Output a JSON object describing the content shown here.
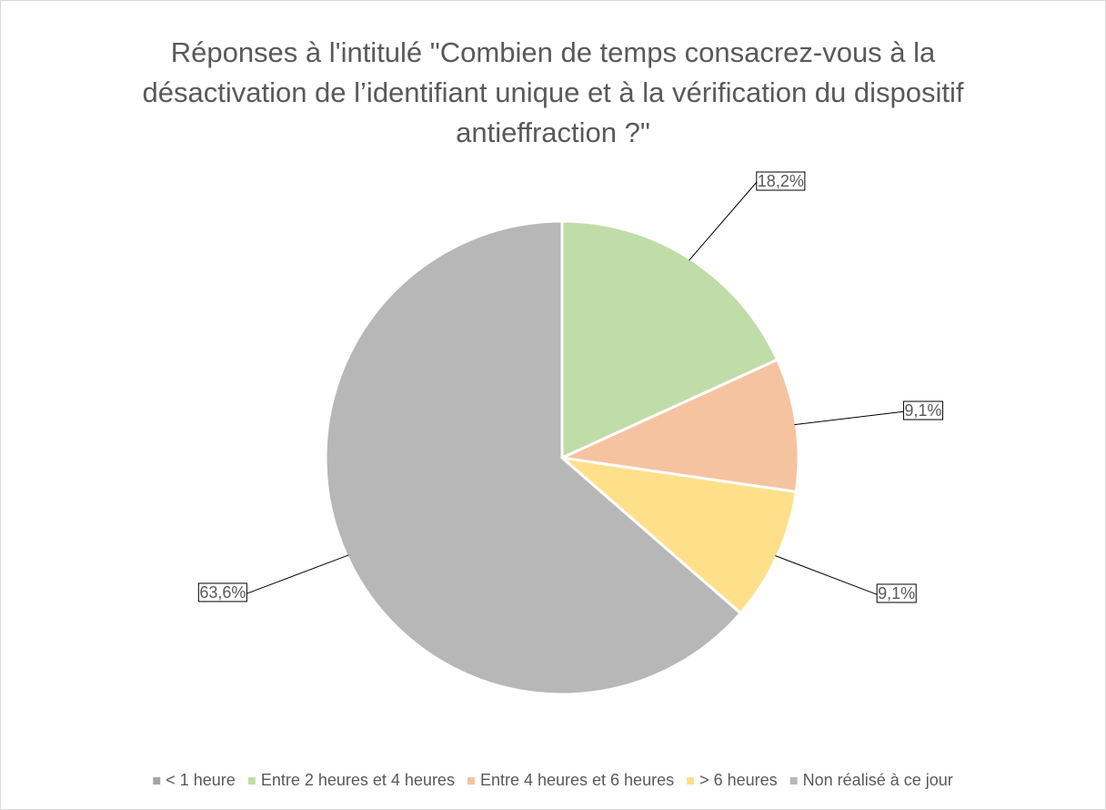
{
  "chart_data": {
    "type": "pie",
    "title": "Réponses à l'intitulé \"Combien de temps consacrez-vous à la désactivation de l’identifiant unique et à la vérification du dispositif antieffraction ?\"",
    "categories": [
      "< 1 heure",
      "Entre 2 heures et 4 heures",
      "Entre 4 heures et 6 heures",
      "> 6 heures",
      "Non réalisé à ce jour"
    ],
    "values": [
      0,
      18.2,
      9.1,
      9.1,
      63.6
    ],
    "value_labels": [
      null,
      "18,2%",
      "9,1%",
      "9,1%",
      "63,6%"
    ],
    "colors": [
      "#a5a5a5",
      "#c0dca8",
      "#f5c3a0",
      "#ffe08a",
      "#b7b7b7"
    ],
    "legend": "bottom"
  }
}
